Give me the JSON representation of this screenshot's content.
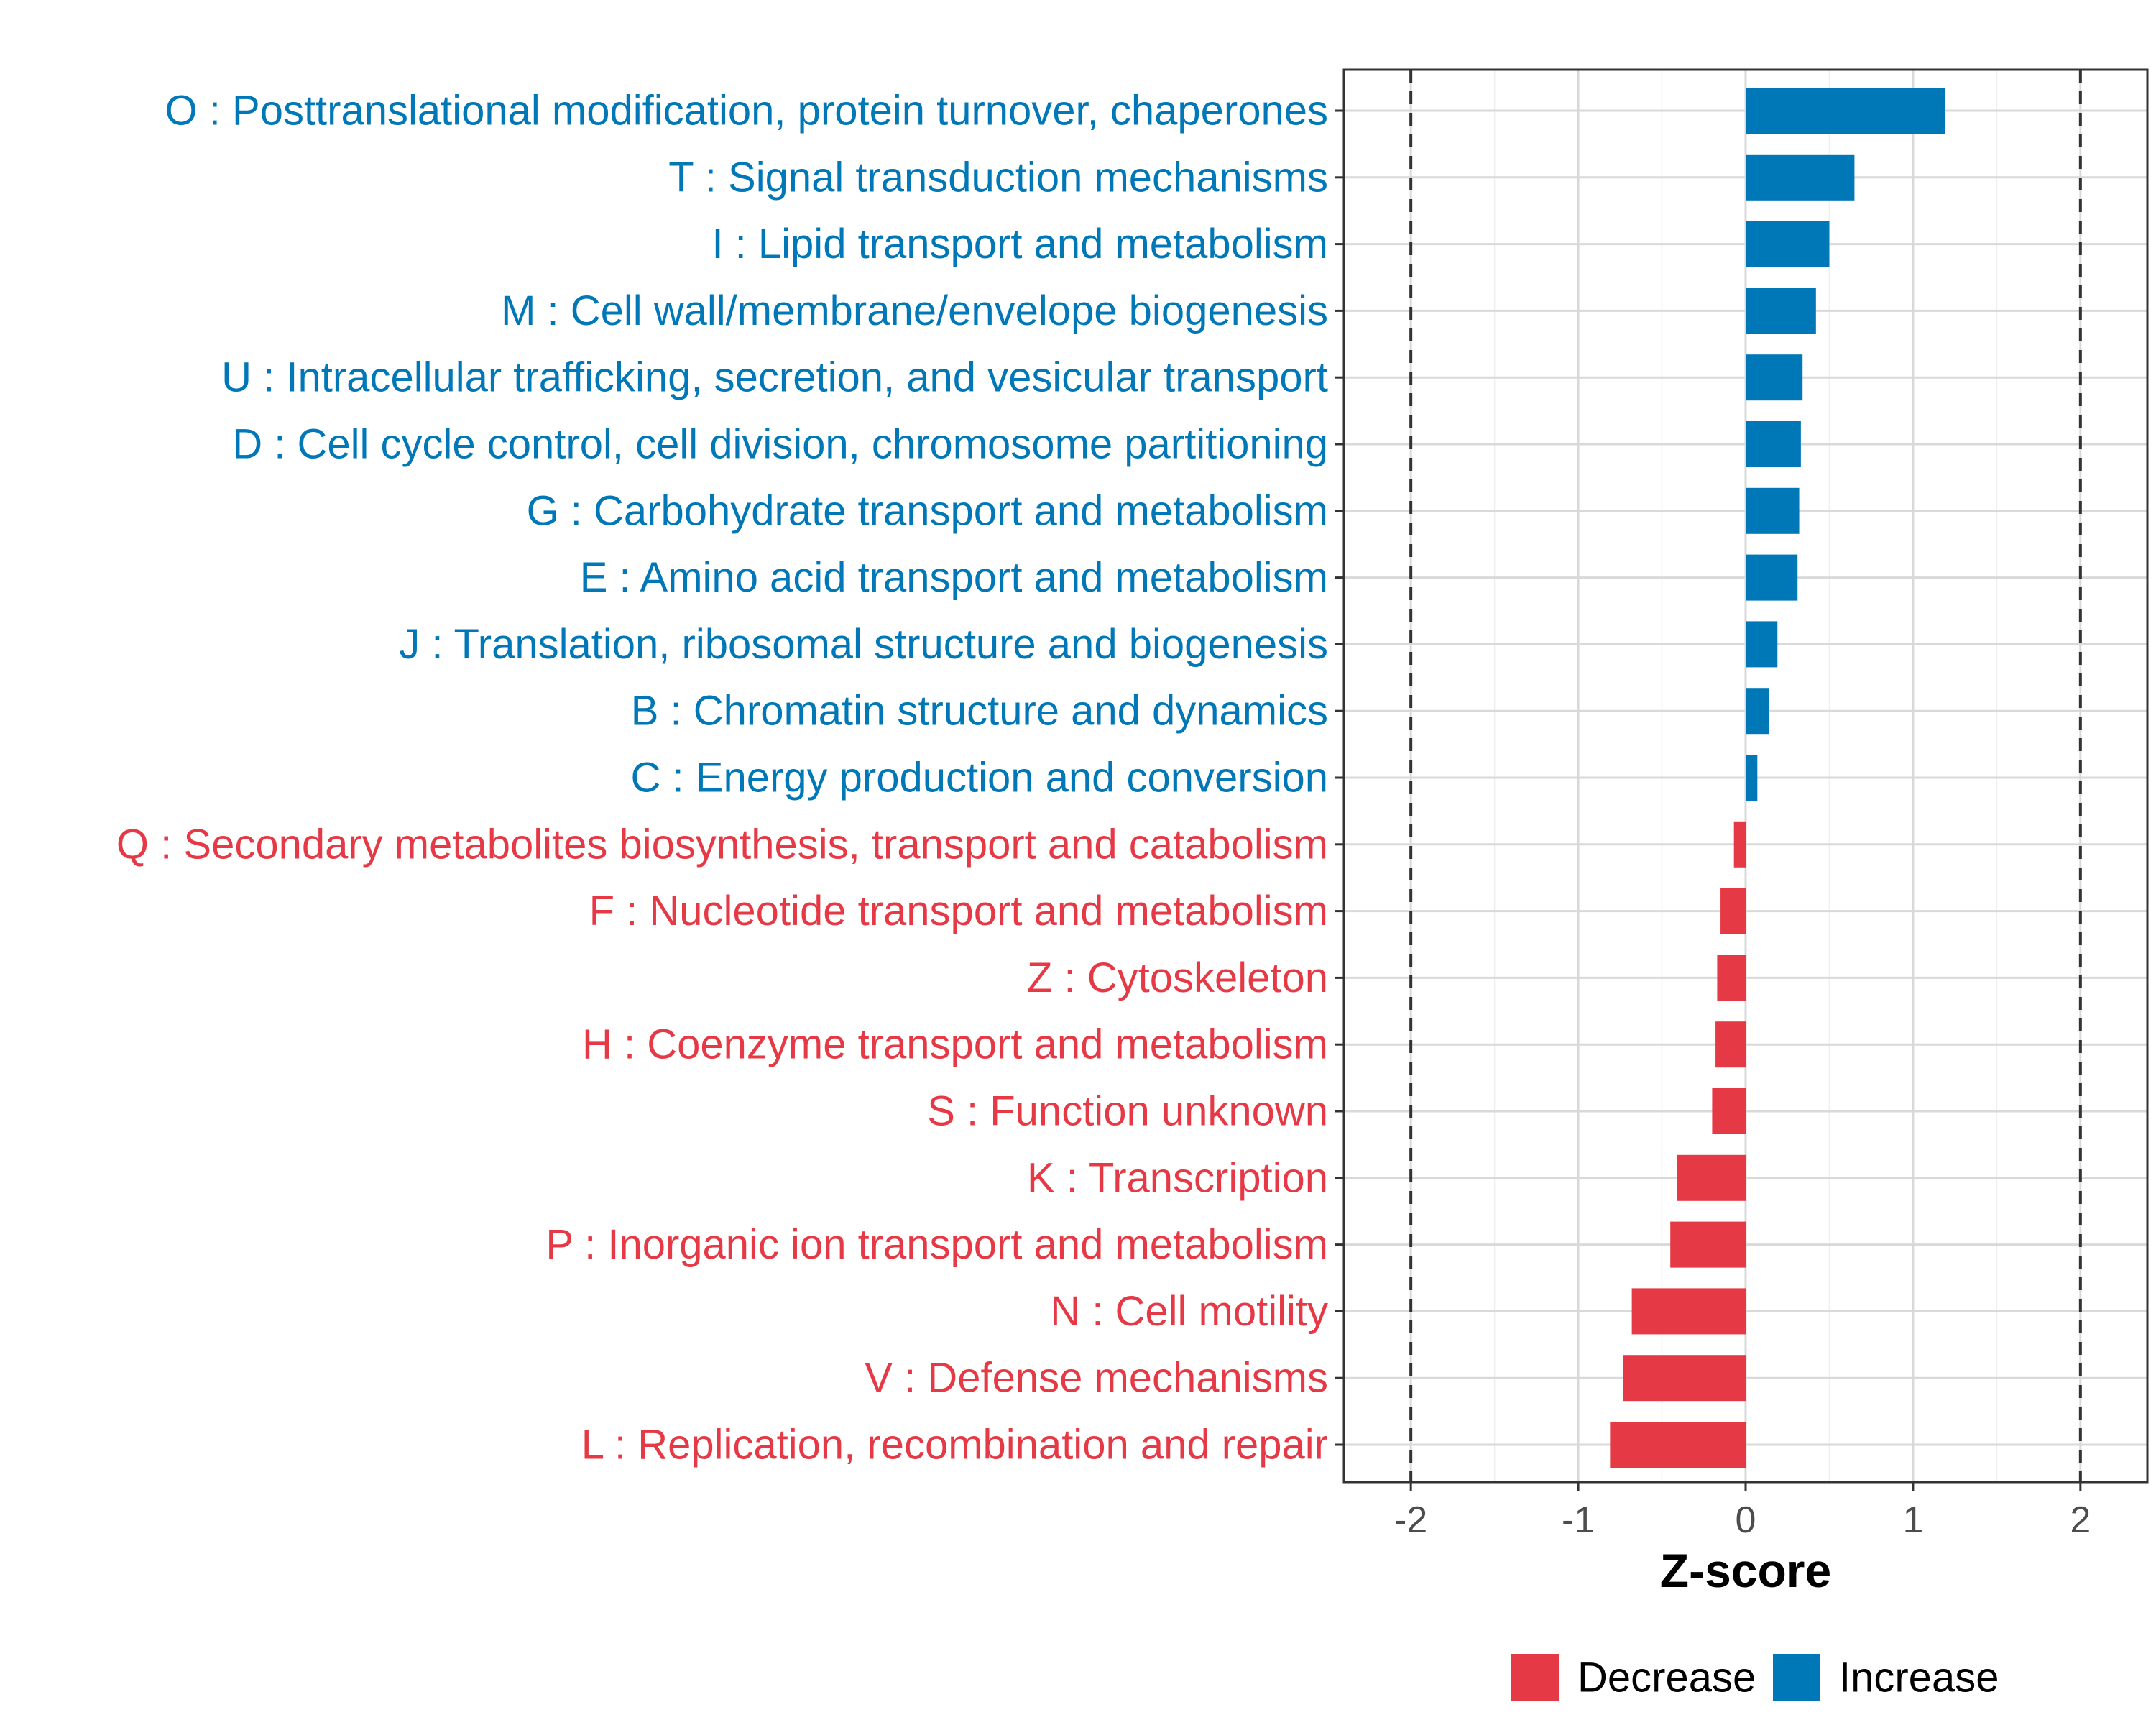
{
  "chart_data": {
    "type": "bar",
    "orientation": "horizontal",
    "title": "",
    "xlabel": "Z-score",
    "ylabel": "",
    "xlim": [
      -2.4,
      2.4
    ],
    "xticks": [
      -2,
      -1,
      0,
      1,
      2
    ],
    "xtick_labels": [
      "-2",
      "-1",
      "0",
      "1",
      "2"
    ],
    "reference_lines": [
      -2,
      2
    ],
    "grid": true,
    "categories": [
      "O : Posttranslational modification, protein turnover, chaperones",
      "T : Signal transduction mechanisms",
      "I : Lipid transport and metabolism",
      "M : Cell wall/membrane/envelope biogenesis",
      "U : Intracellular trafficking, secretion, and vesicular transport",
      "D : Cell cycle control, cell division, chromosome partitioning",
      "G : Carbohydrate transport and metabolism",
      "E : Amino acid transport and metabolism",
      "J : Translation, ribosomal structure and biogenesis",
      "B : Chromatin structure and dynamics",
      "C : Energy production and conversion",
      "Q : Secondary metabolites biosynthesis, transport and catabolism",
      "F : Nucleotide transport and metabolism",
      "Z : Cytoskeleton",
      "H : Coenzyme transport and metabolism",
      "S : Function unknown",
      "K : Transcription",
      "P : Inorganic ion transport and metabolism",
      "N : Cell motility",
      "V : Defense mechanisms",
      "L : Replication, recombination and repair"
    ],
    "values": [
      1.19,
      0.65,
      0.5,
      0.42,
      0.34,
      0.33,
      0.32,
      0.31,
      0.19,
      0.14,
      0.07,
      -0.07,
      -0.15,
      -0.17,
      -0.18,
      -0.2,
      -0.41,
      -0.45,
      -0.68,
      -0.73,
      -0.81
    ],
    "groups": [
      "Increase",
      "Increase",
      "Increase",
      "Increase",
      "Increase",
      "Increase",
      "Increase",
      "Increase",
      "Increase",
      "Increase",
      "Increase",
      "Decrease",
      "Decrease",
      "Decrease",
      "Decrease",
      "Decrease",
      "Decrease",
      "Decrease",
      "Decrease",
      "Decrease",
      "Decrease"
    ],
    "legend": {
      "position": "bottom",
      "entries": [
        {
          "label": "Decrease",
          "color": "#E63946"
        },
        {
          "label": "Increase",
          "color": "#0077B6"
        }
      ]
    },
    "colors": {
      "Decrease": "#E63946",
      "Increase": "#0077B6"
    }
  }
}
